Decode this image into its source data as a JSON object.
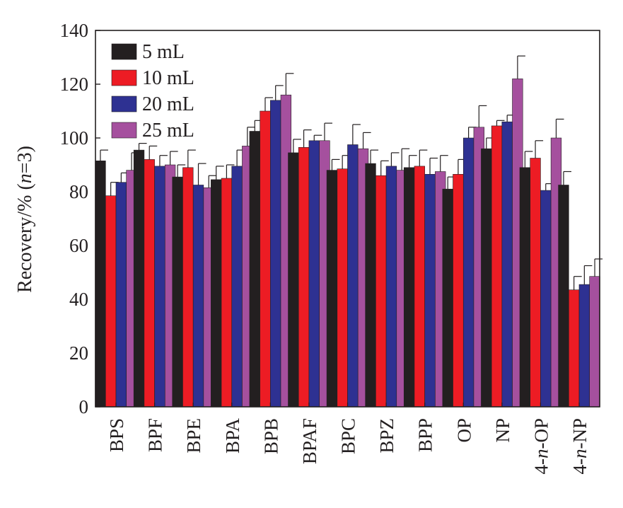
{
  "chart_data": {
    "type": "bar",
    "ylabel_main": "Recovery/% (",
    "ylabel_italic": "n",
    "ylabel_tail": "=3)",
    "ylim": [
      0,
      140
    ],
    "yticks": [
      "0",
      "20",
      "40",
      "60",
      "80",
      "100",
      "120",
      "140"
    ],
    "legend_position": "top-left",
    "categories": [
      {
        "label": "BPS"
      },
      {
        "label": "BPF"
      },
      {
        "label": "BPE"
      },
      {
        "label": "BPA"
      },
      {
        "label": "BPB"
      },
      {
        "label": "BPAF"
      },
      {
        "label": "BPC"
      },
      {
        "label": "BPZ"
      },
      {
        "label": "BPP"
      },
      {
        "label": "OP"
      },
      {
        "label": "NP"
      },
      {
        "pre": "4-",
        "it": "n",
        "post": "-OP"
      },
      {
        "pre": "4-",
        "it": "n",
        "post": "-NP"
      }
    ],
    "series": [
      {
        "name": "5 mL",
        "color": "#231f20",
        "values": [
          91.5,
          95.5,
          85.5,
          84.5,
          102.5,
          94.5,
          88,
          90.5,
          89,
          81,
          96,
          89,
          82.5
        ],
        "errors": [
          4,
          2.5,
          4.5,
          5,
          4,
          5,
          4,
          5,
          4.5,
          4.5,
          4,
          6,
          5
        ]
      },
      {
        "name": "10 mL",
        "color": "#ed1c24",
        "values": [
          78.5,
          92,
          89,
          85,
          110,
          96.5,
          88.5,
          86,
          89.5,
          86.5,
          104.5,
          92.5,
          43.5
        ],
        "errors": [
          5,
          5,
          6.5,
          5,
          5,
          6.5,
          5,
          5.5,
          6,
          5.5,
          2,
          6.5,
          5
        ]
      },
      {
        "name": "20 mL",
        "color": "#2e3192",
        "values": [
          83.5,
          89.5,
          82.5,
          89.5,
          114,
          99,
          97.5,
          89.5,
          86.5,
          100,
          106,
          80.5,
          45.5
        ],
        "errors": [
          3.5,
          4,
          8,
          6,
          5.5,
          2,
          7.5,
          5,
          6,
          4,
          2.5,
          2.5,
          7
        ]
      },
      {
        "name": "25 mL",
        "color": "#a5509e",
        "values": [
          88,
          90,
          81.5,
          97,
          116,
          99,
          96,
          88,
          87.5,
          104,
          122,
          100,
          48.5
        ],
        "errors": [
          6.5,
          5,
          4.5,
          7,
          8,
          6.5,
          6,
          8,
          6,
          8,
          8.5,
          7,
          6.5
        ]
      }
    ]
  }
}
